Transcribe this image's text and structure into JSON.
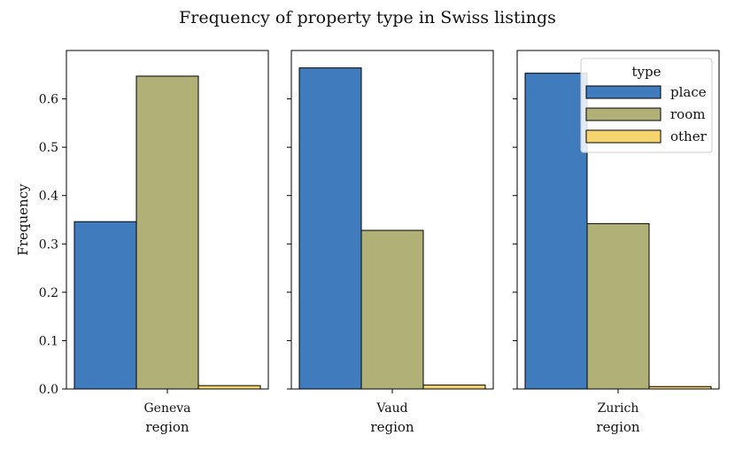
{
  "chart_data": {
    "type": "bar",
    "title": "Frequency of property type in Swiss listings",
    "ylabel": "Frequency",
    "ylim": [
      0,
      0.7
    ],
    "yticks": [
      0.0,
      0.1,
      0.2,
      0.3,
      0.4,
      0.5,
      0.6
    ],
    "ytick_labels": [
      "0.0",
      "0.1",
      "0.2",
      "0.3",
      "0.4",
      "0.5",
      "0.6"
    ],
    "legend": {
      "title": "type",
      "placement": "top-right"
    },
    "series": [
      {
        "name": "place",
        "color": "#3f7bbd"
      },
      {
        "name": "room",
        "color": "#b0b077"
      },
      {
        "name": "other",
        "color": "#f7d56e"
      }
    ],
    "panels": [
      {
        "category": "Geneva",
        "xlabel": "region",
        "values": [
          0.346,
          0.647,
          0.007
        ]
      },
      {
        "category": "Vaud",
        "xlabel": "region",
        "values": [
          0.664,
          0.328,
          0.008
        ]
      },
      {
        "category": "Zurich",
        "xlabel": "region",
        "values": [
          0.653,
          0.342,
          0.005
        ]
      }
    ]
  }
}
